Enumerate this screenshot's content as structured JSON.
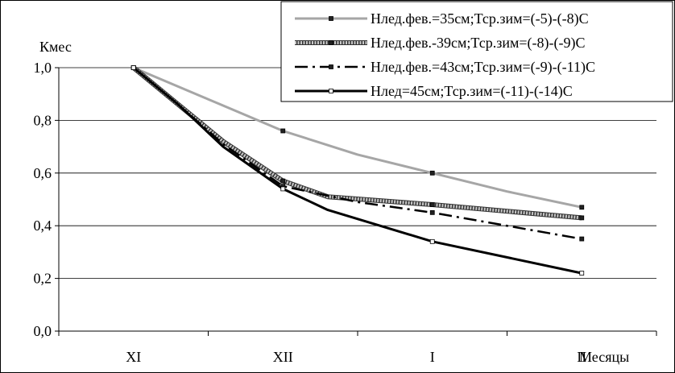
{
  "chart_data": {
    "type": "line",
    "ylabel": "Кмес",
    "xlabel": "Месяцы",
    "categories": [
      "XI",
      "XII",
      "I",
      "II"
    ],
    "ylim": [
      0.0,
      1.0
    ],
    "yticks": [
      "0,0",
      "0,2",
      "0,4",
      "0,6",
      "0,8",
      "1,0"
    ],
    "grid": true,
    "legend_position": "top-right",
    "series": [
      {
        "name": "Нлед.фев.=35см;Тср.зим=(-5)-(-8)С",
        "color": "#a0a0a0",
        "style": "solid-gray",
        "points": [
          [
            0.0,
            1.0
          ],
          [
            0.5,
            0.88
          ],
          [
            1.0,
            0.76
          ],
          [
            1.5,
            0.67
          ],
          [
            2.0,
            0.6
          ],
          [
            2.5,
            0.53
          ],
          [
            3.0,
            0.47
          ]
        ]
      },
      {
        "name": "Нлед.фев.-39см;Тср.зим=(-8)-(-9)С",
        "color": "#555555",
        "style": "hatched",
        "points": [
          [
            0.0,
            1.0
          ],
          [
            0.3,
            0.86
          ],
          [
            0.6,
            0.72
          ],
          [
            1.0,
            0.57
          ],
          [
            1.3,
            0.51
          ],
          [
            2.0,
            0.48
          ],
          [
            3.0,
            0.43
          ]
        ]
      },
      {
        "name": "Нлед.фев.=43см;Тср.зим=(-9)-(-11)С",
        "color": "#000000",
        "style": "dash-dot",
        "points": [
          [
            0.0,
            1.0
          ],
          [
            0.3,
            0.86
          ],
          [
            0.6,
            0.71
          ],
          [
            1.0,
            0.55
          ],
          [
            1.5,
            0.49
          ],
          [
            2.0,
            0.45
          ],
          [
            3.0,
            0.35
          ]
        ]
      },
      {
        "name": "Нлед=45см;Тср.зим=(-11)-(-14)С",
        "color": "#000000",
        "style": "solid-black",
        "points": [
          [
            0.0,
            1.0
          ],
          [
            0.3,
            0.86
          ],
          [
            0.6,
            0.7
          ],
          [
            1.0,
            0.54
          ],
          [
            1.3,
            0.46
          ],
          [
            2.0,
            0.34
          ],
          [
            3.0,
            0.22
          ]
        ]
      }
    ]
  }
}
